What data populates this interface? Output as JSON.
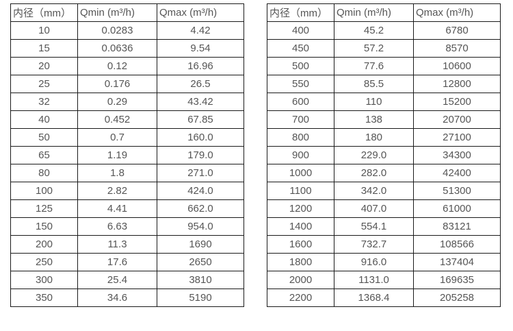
{
  "colors": {
    "border": "#1a1a1a",
    "text": "#555555",
    "background": "#ffffff"
  },
  "tables": [
    {
      "name": "flow-rate-table-small-diameters",
      "columns": [
        "内径（mm）",
        "Qmin (m³/h)",
        "Qmax (m³/h)"
      ],
      "rows": [
        [
          "10",
          "0.0283",
          "4.42"
        ],
        [
          "15",
          "0.0636",
          "9.54"
        ],
        [
          "20",
          "0.12",
          "16.96"
        ],
        [
          "25",
          "0.176",
          "26.5"
        ],
        [
          "32",
          "0.29",
          "43.42"
        ],
        [
          "40",
          "0.452",
          "67.85"
        ],
        [
          "50",
          "0.7",
          "160.0"
        ],
        [
          "65",
          "1.19",
          "179.0"
        ],
        [
          "80",
          "1.8",
          "271.0"
        ],
        [
          "100",
          "2.82",
          "424.0"
        ],
        [
          "125",
          "4.41",
          "662.0"
        ],
        [
          "150",
          "6.63",
          "954.0"
        ],
        [
          "200",
          "11.3",
          "1690"
        ],
        [
          "250",
          "17.6",
          "2650"
        ],
        [
          "300",
          "25.4",
          "3810"
        ],
        [
          "350",
          "34.6",
          "5190"
        ]
      ]
    },
    {
      "name": "flow-rate-table-large-diameters",
      "columns": [
        "内径（mm）",
        "Qmin (m³/h)",
        "Qmax (m³/h)"
      ],
      "rows": [
        [
          "400",
          "45.2",
          "6780"
        ],
        [
          "450",
          "57.2",
          "8570"
        ],
        [
          "500",
          "77.6",
          "10600"
        ],
        [
          "550",
          "85.5",
          "12800"
        ],
        [
          "600",
          "110",
          "15200"
        ],
        [
          "700",
          "138",
          "20700"
        ],
        [
          "800",
          "180",
          "27100"
        ],
        [
          "900",
          "229.0",
          "34300"
        ],
        [
          "1000",
          "282.0",
          "42400"
        ],
        [
          "1100",
          "342.0",
          "51300"
        ],
        [
          "1200",
          "407.0",
          "61000"
        ],
        [
          "1400",
          "554.1",
          "83121"
        ],
        [
          "1600",
          "732.7",
          "108566"
        ],
        [
          "1800",
          "916.0",
          "137404"
        ],
        [
          "2000",
          "1131.0",
          "169635"
        ],
        [
          "2200",
          "1368.4",
          "205258"
        ]
      ]
    }
  ]
}
